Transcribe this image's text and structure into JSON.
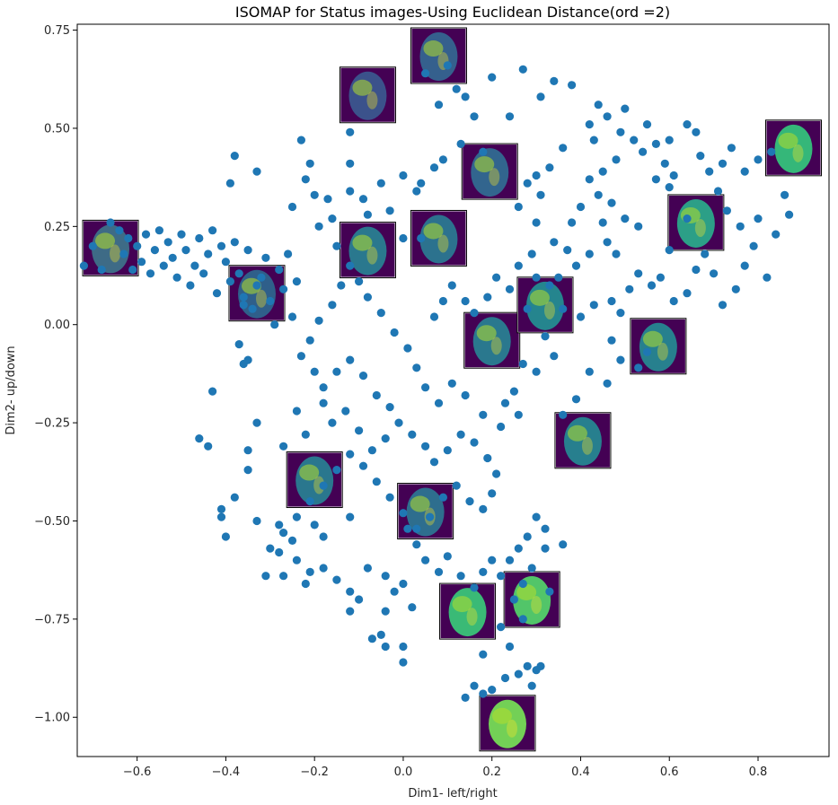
{
  "chart_data": {
    "type": "scatter",
    "title": "ISOMAP for Status images-Using Euclidean Distance(ord =2)",
    "xlabel": "Dim1- left/right",
    "ylabel": "Dim2- up/down",
    "xlim": [
      -0.735,
      0.96
    ],
    "ylim": [
      -1.1,
      0.765
    ],
    "x_ticks": [
      -0.6,
      -0.4,
      -0.2,
      0.0,
      0.2,
      0.4,
      0.6,
      0.8
    ],
    "x_tick_labels": [
      "−0.6",
      "−0.4",
      "−0.2",
      "0.0",
      "0.2",
      "0.4",
      "0.6",
      "0.8"
    ],
    "y_ticks": [
      0.75,
      0.5,
      0.25,
      0.0,
      -0.25,
      -0.5,
      -0.75,
      -1.0
    ],
    "y_tick_labels": [
      "0.75",
      "0.50",
      "0.25",
      "0.00",
      "−0.25",
      "−0.50",
      "−0.75",
      "−1.00"
    ],
    "point_color": "#1f77b4",
    "grid": false,
    "points": [
      [
        -0.66,
        0.26
      ],
      [
        -0.64,
        0.24
      ],
      [
        -0.62,
        0.22
      ],
      [
        -0.6,
        0.2
      ],
      [
        -0.58,
        0.23
      ],
      [
        -0.56,
        0.19
      ],
      [
        -0.55,
        0.24
      ],
      [
        -0.53,
        0.21
      ],
      [
        -0.52,
        0.17
      ],
      [
        -0.5,
        0.23
      ],
      [
        -0.49,
        0.19
      ],
      [
        -0.47,
        0.15
      ],
      [
        -0.46,
        0.22
      ],
      [
        -0.44,
        0.18
      ],
      [
        -0.43,
        0.24
      ],
      [
        -0.41,
        0.2
      ],
      [
        -0.4,
        0.16
      ],
      [
        -0.38,
        0.21
      ],
      [
        -0.37,
        0.13
      ],
      [
        -0.35,
        0.19
      ],
      [
        -0.33,
        0.1
      ],
      [
        -0.31,
        0.17
      ],
      [
        -0.3,
        0.06
      ],
      [
        -0.28,
        0.14
      ],
      [
        -0.27,
        0.09
      ],
      [
        -0.25,
        0.02
      ],
      [
        -0.63,
        0.18
      ],
      [
        -0.61,
        0.14
      ],
      [
        -0.59,
        0.16
      ],
      [
        -0.57,
        0.13
      ],
      [
        -0.54,
        0.15
      ],
      [
        -0.51,
        0.12
      ],
      [
        -0.48,
        0.1
      ],
      [
        -0.45,
        0.13
      ],
      [
        -0.42,
        0.08
      ],
      [
        -0.39,
        0.11
      ],
      [
        -0.36,
        0.07
      ],
      [
        -0.34,
        0.04
      ],
      [
        -0.32,
        0.12
      ],
      [
        -0.29,
        0.0
      ],
      [
        -0.26,
        0.18
      ],
      [
        -0.24,
        0.11
      ],
      [
        -0.38,
        0.43
      ],
      [
        -0.39,
        0.36
      ],
      [
        -0.33,
        0.39
      ],
      [
        -0.22,
        0.37
      ],
      [
        -0.21,
        0.41
      ],
      [
        -0.23,
        0.47
      ],
      [
        -0.12,
        0.49
      ],
      [
        -0.12,
        0.41
      ],
      [
        -0.17,
        0.32
      ],
      [
        -0.2,
        0.33
      ],
      [
        -0.12,
        0.34
      ],
      [
        -0.09,
        0.32
      ],
      [
        -0.05,
        0.36
      ],
      [
        0.0,
        0.38
      ],
      [
        0.03,
        0.34
      ],
      [
        0.04,
        0.36
      ],
      [
        -0.25,
        0.3
      ],
      [
        -0.19,
        0.25
      ],
      [
        -0.16,
        0.27
      ],
      [
        -0.08,
        0.28
      ],
      [
        -0.03,
        0.29
      ],
      [
        0.0,
        0.22
      ],
      [
        0.04,
        0.22
      ],
      [
        -0.15,
        0.2
      ],
      [
        0.05,
        0.64
      ],
      [
        0.08,
        0.56
      ],
      [
        0.1,
        0.66
      ],
      [
        0.12,
        0.6
      ],
      [
        0.14,
        0.58
      ],
      [
        0.16,
        0.53
      ],
      [
        0.2,
        0.63
      ],
      [
        0.24,
        0.53
      ],
      [
        0.27,
        0.65
      ],
      [
        0.31,
        0.58
      ],
      [
        0.34,
        0.62
      ],
      [
        0.38,
        0.61
      ],
      [
        0.13,
        0.46
      ],
      [
        0.18,
        0.44
      ],
      [
        0.09,
        0.42
      ],
      [
        0.07,
        0.4
      ],
      [
        0.3,
        0.38
      ],
      [
        0.33,
        0.4
      ],
      [
        0.36,
        0.45
      ],
      [
        0.31,
        0.33
      ],
      [
        0.28,
        0.36
      ],
      [
        0.26,
        0.3
      ],
      [
        0.3,
        0.26
      ],
      [
        0.34,
        0.21
      ],
      [
        0.38,
        0.26
      ],
      [
        0.4,
        0.3
      ],
      [
        0.42,
        0.37
      ],
      [
        0.45,
        0.39
      ],
      [
        0.44,
        0.33
      ],
      [
        0.47,
        0.31
      ],
      [
        0.5,
        0.27
      ],
      [
        0.53,
        0.25
      ],
      [
        0.48,
        0.42
      ],
      [
        0.43,
        0.47
      ],
      [
        0.42,
        0.51
      ],
      [
        0.44,
        0.56
      ],
      [
        0.46,
        0.53
      ],
      [
        0.49,
        0.49
      ],
      [
        0.5,
        0.55
      ],
      [
        0.52,
        0.47
      ],
      [
        0.55,
        0.51
      ],
      [
        0.54,
        0.44
      ],
      [
        0.57,
        0.46
      ],
      [
        0.59,
        0.41
      ],
      [
        0.61,
        0.38
      ],
      [
        0.6,
        0.47
      ],
      [
        0.64,
        0.51
      ],
      [
        0.66,
        0.49
      ],
      [
        0.67,
        0.43
      ],
      [
        0.69,
        0.39
      ],
      [
        0.72,
        0.41
      ],
      [
        0.74,
        0.45
      ],
      [
        0.77,
        0.39
      ],
      [
        0.71,
        0.34
      ],
      [
        0.73,
        0.29
      ],
      [
        0.76,
        0.25
      ],
      [
        0.8,
        0.27
      ],
      [
        0.84,
        0.23
      ],
      [
        0.79,
        0.2
      ],
      [
        0.82,
        0.12
      ],
      [
        0.77,
        0.15
      ],
      [
        0.75,
        0.09
      ],
      [
        0.72,
        0.05
      ],
      [
        0.7,
        0.13
      ],
      [
        0.68,
        0.18
      ],
      [
        0.66,
        0.14
      ],
      [
        0.64,
        0.08
      ],
      [
        0.61,
        0.06
      ],
      [
        0.58,
        0.12
      ],
      [
        0.56,
        0.1
      ],
      [
        0.53,
        0.13
      ],
      [
        0.51,
        0.09
      ],
      [
        0.49,
        0.03
      ],
      [
        0.47,
        0.06
      ],
      [
        0.46,
        0.21
      ],
      [
        0.45,
        0.26
      ],
      [
        0.48,
        0.18
      ],
      [
        0.42,
        0.18
      ],
      [
        0.39,
        0.15
      ],
      [
        0.37,
        0.19
      ],
      [
        0.35,
        0.12
      ],
      [
        0.33,
        0.1
      ],
      [
        0.36,
        0.04
      ],
      [
        0.4,
        0.02
      ],
      [
        0.43,
        0.05
      ],
      [
        0.47,
        -0.04
      ],
      [
        0.49,
        -0.09
      ],
      [
        0.53,
        -0.11
      ],
      [
        0.55,
        -0.07
      ],
      [
        0.46,
        -0.15
      ],
      [
        0.42,
        -0.12
      ],
      [
        0.39,
        -0.19
      ],
      [
        0.36,
        -0.23
      ],
      [
        0.8,
        0.42
      ],
      [
        0.83,
        0.44
      ],
      [
        0.86,
        0.33
      ],
      [
        0.87,
        0.28
      ],
      [
        0.6,
        0.35
      ],
      [
        0.57,
        0.37
      ],
      [
        0.6,
        0.19
      ],
      [
        0.64,
        0.27
      ],
      [
        -0.7,
        0.2
      ],
      [
        -0.72,
        0.15
      ],
      [
        -0.68,
        0.14
      ],
      [
        0.07,
        0.02
      ],
      [
        0.09,
        0.06
      ],
      [
        0.11,
        0.1
      ],
      [
        0.14,
        0.06
      ],
      [
        0.16,
        0.03
      ],
      [
        0.19,
        0.07
      ],
      [
        0.21,
        0.12
      ],
      [
        0.24,
        0.09
      ],
      [
        0.26,
        0.15
      ],
      [
        0.29,
        0.18
      ],
      [
        0.3,
        0.12
      ],
      [
        0.28,
        0.04
      ],
      [
        0.32,
        -0.03
      ],
      [
        0.34,
        -0.08
      ],
      [
        0.3,
        -0.12
      ],
      [
        0.27,
        -0.1
      ],
      [
        0.25,
        -0.17
      ],
      [
        0.23,
        -0.2
      ],
      [
        0.26,
        -0.23
      ],
      [
        0.22,
        -0.26
      ],
      [
        0.18,
        -0.23
      ],
      [
        0.14,
        -0.18
      ],
      [
        0.11,
        -0.15
      ],
      [
        0.08,
        -0.2
      ],
      [
        0.05,
        -0.16
      ],
      [
        0.03,
        -0.11
      ],
      [
        0.01,
        -0.06
      ],
      [
        -0.02,
        -0.02
      ],
      [
        -0.05,
        0.03
      ],
      [
        -0.08,
        0.07
      ],
      [
        -0.1,
        0.11
      ],
      [
        -0.12,
        0.15
      ],
      [
        -0.14,
        0.1
      ],
      [
        -0.16,
        0.05
      ],
      [
        -0.19,
        0.01
      ],
      [
        -0.21,
        -0.04
      ],
      [
        -0.23,
        -0.08
      ],
      [
        -0.2,
        -0.12
      ],
      [
        -0.18,
        -0.16
      ],
      [
        -0.15,
        -0.12
      ],
      [
        -0.12,
        -0.09
      ],
      [
        -0.09,
        -0.13
      ],
      [
        -0.06,
        -0.18
      ],
      [
        -0.03,
        -0.21
      ],
      [
        -0.01,
        -0.25
      ],
      [
        0.02,
        -0.28
      ],
      [
        0.05,
        -0.31
      ],
      [
        0.07,
        -0.35
      ],
      [
        0.1,
        -0.32
      ],
      [
        0.13,
        -0.28
      ],
      [
        0.16,
        -0.3
      ],
      [
        0.19,
        -0.34
      ],
      [
        0.21,
        -0.38
      ],
      [
        0.2,
        -0.43
      ],
      [
        0.18,
        -0.47
      ],
      [
        0.15,
        -0.45
      ],
      [
        0.12,
        -0.41
      ],
      [
        0.09,
        -0.44
      ],
      [
        0.06,
        -0.49
      ],
      [
        0.03,
        -0.52
      ],
      [
        0.0,
        -0.48
      ],
      [
        -0.03,
        -0.44
      ],
      [
        -0.06,
        -0.4
      ],
      [
        -0.09,
        -0.36
      ],
      [
        -0.12,
        -0.33
      ],
      [
        -0.15,
        -0.37
      ],
      [
        -0.18,
        -0.41
      ],
      [
        -0.21,
        -0.45
      ],
      [
        -0.24,
        -0.49
      ],
      [
        -0.27,
        -0.53
      ],
      [
        -0.3,
        -0.57
      ],
      [
        -0.27,
        -0.31
      ],
      [
        -0.24,
        -0.22
      ],
      [
        -0.22,
        -0.28
      ],
      [
        -0.18,
        -0.2
      ],
      [
        -0.16,
        -0.25
      ],
      [
        -0.13,
        -0.22
      ],
      [
        -0.1,
        -0.27
      ],
      [
        -0.07,
        -0.32
      ],
      [
        -0.04,
        -0.29
      ],
      [
        -0.33,
        -0.25
      ],
      [
        -0.35,
        -0.32
      ],
      [
        -0.38,
        -0.44
      ],
      [
        -0.4,
        -0.54
      ],
      [
        -0.41,
        -0.47
      ],
      [
        -0.44,
        -0.31
      ],
      [
        -0.46,
        -0.29
      ],
      [
        -0.43,
        -0.17
      ],
      [
        -0.41,
        -0.49
      ],
      [
        -0.36,
        0.05
      ],
      [
        -0.37,
        -0.05
      ],
      [
        -0.36,
        -0.1
      ],
      [
        -0.35,
        -0.09
      ],
      [
        -0.28,
        -0.58
      ],
      [
        -0.28,
        -0.51
      ],
      [
        -0.25,
        -0.55
      ],
      [
        -0.24,
        -0.6
      ],
      [
        -0.21,
        -0.63
      ],
      [
        -0.22,
        -0.66
      ],
      [
        -0.18,
        -0.62
      ],
      [
        -0.15,
        -0.65
      ],
      [
        -0.12,
        -0.68
      ],
      [
        -0.1,
        -0.7
      ],
      [
        -0.12,
        -0.73
      ],
      [
        -0.08,
        -0.62
      ],
      [
        -0.04,
        -0.64
      ],
      [
        -0.02,
        -0.68
      ],
      [
        0.0,
        -0.66
      ],
      [
        0.02,
        -0.72
      ],
      [
        -0.04,
        -0.73
      ],
      [
        -0.07,
        -0.8
      ],
      [
        -0.05,
        -0.79
      ],
      [
        -0.04,
        -0.82
      ],
      [
        0.0,
        -0.82
      ],
      [
        0.0,
        -0.86
      ],
      [
        0.01,
        -0.52
      ],
      [
        0.03,
        -0.56
      ],
      [
        0.05,
        -0.6
      ],
      [
        0.08,
        -0.63
      ],
      [
        0.1,
        -0.59
      ],
      [
        0.13,
        -0.64
      ],
      [
        0.16,
        -0.67
      ],
      [
        0.18,
        -0.63
      ],
      [
        0.2,
        -0.6
      ],
      [
        0.22,
        -0.64
      ],
      [
        0.24,
        -0.6
      ],
      [
        0.26,
        -0.57
      ],
      [
        0.28,
        -0.54
      ],
      [
        0.3,
        -0.49
      ],
      [
        0.32,
        -0.52
      ],
      [
        0.29,
        -0.62
      ],
      [
        0.27,
        -0.66
      ],
      [
        0.25,
        -0.7
      ],
      [
        0.22,
        -0.77
      ],
      [
        0.24,
        -0.82
      ],
      [
        0.26,
        -0.89
      ],
      [
        0.23,
        -0.9
      ],
      [
        0.2,
        -0.93
      ],
      [
        0.18,
        -0.94
      ],
      [
        0.16,
        -0.92
      ],
      [
        0.14,
        -0.95
      ],
      [
        0.28,
        -0.87
      ],
      [
        0.31,
        -0.87
      ],
      [
        0.3,
        -0.88
      ],
      [
        0.29,
        -0.92
      ],
      [
        0.27,
        -0.75
      ],
      [
        0.36,
        -0.56
      ],
      [
        0.33,
        -0.68
      ],
      [
        0.32,
        -0.57
      ],
      [
        0.18,
        -0.84
      ],
      [
        -0.27,
        -0.64
      ],
      [
        -0.31,
        -0.64
      ],
      [
        -0.33,
        -0.5
      ],
      [
        -0.35,
        -0.37
      ],
      [
        -0.18,
        -0.54
      ],
      [
        -0.12,
        -0.49
      ],
      [
        -0.2,
        -0.51
      ]
    ],
    "annotations": [
      {
        "name": "face-thumbnail",
        "x": -0.66,
        "y": 0.195,
        "tone": "#3e6b86"
      },
      {
        "name": "face-thumbnail",
        "x": -0.33,
        "y": 0.08,
        "tone": "#2f5f8a"
      },
      {
        "name": "face-thumbnail",
        "x": -0.08,
        "y": 0.19,
        "tone": "#2a788e"
      },
      {
        "name": "face-thumbnail",
        "x": -0.08,
        "y": 0.585,
        "tone": "#3b528b"
      },
      {
        "name": "face-thumbnail",
        "x": 0.08,
        "y": 0.685,
        "tone": "#35608d"
      },
      {
        "name": "face-thumbnail",
        "x": 0.08,
        "y": 0.22,
        "tone": "#2c728e"
      },
      {
        "name": "face-thumbnail",
        "x": 0.195,
        "y": 0.39,
        "tone": "#32658e"
      },
      {
        "name": "face-thumbnail",
        "x": 0.2,
        "y": -0.04,
        "tone": "#2a788e"
      },
      {
        "name": "face-thumbnail",
        "x": 0.32,
        "y": 0.05,
        "tone": "#25858e"
      },
      {
        "name": "face-thumbnail",
        "x": 0.66,
        "y": 0.26,
        "tone": "#2c9f87"
      },
      {
        "name": "face-thumbnail",
        "x": 0.575,
        "y": -0.055,
        "tone": "#27808e"
      },
      {
        "name": "face-thumbnail",
        "x": 0.88,
        "y": 0.45,
        "tone": "#35b779"
      },
      {
        "name": "face-thumbnail",
        "x": 0.405,
        "y": -0.295,
        "tone": "#277f8e"
      },
      {
        "name": "face-thumbnail",
        "x": -0.2,
        "y": -0.395,
        "tone": "#2a778e"
      },
      {
        "name": "face-thumbnail",
        "x": 0.05,
        "y": -0.475,
        "tone": "#2e6e8e"
      },
      {
        "name": "face-thumbnail",
        "x": 0.145,
        "y": -0.73,
        "tone": "#3aba76"
      },
      {
        "name": "face-thumbnail",
        "x": 0.29,
        "y": -0.7,
        "tone": "#52c569"
      },
      {
        "name": "face-thumbnail",
        "x": 0.235,
        "y": -1.015,
        "tone": "#73d056"
      }
    ]
  }
}
